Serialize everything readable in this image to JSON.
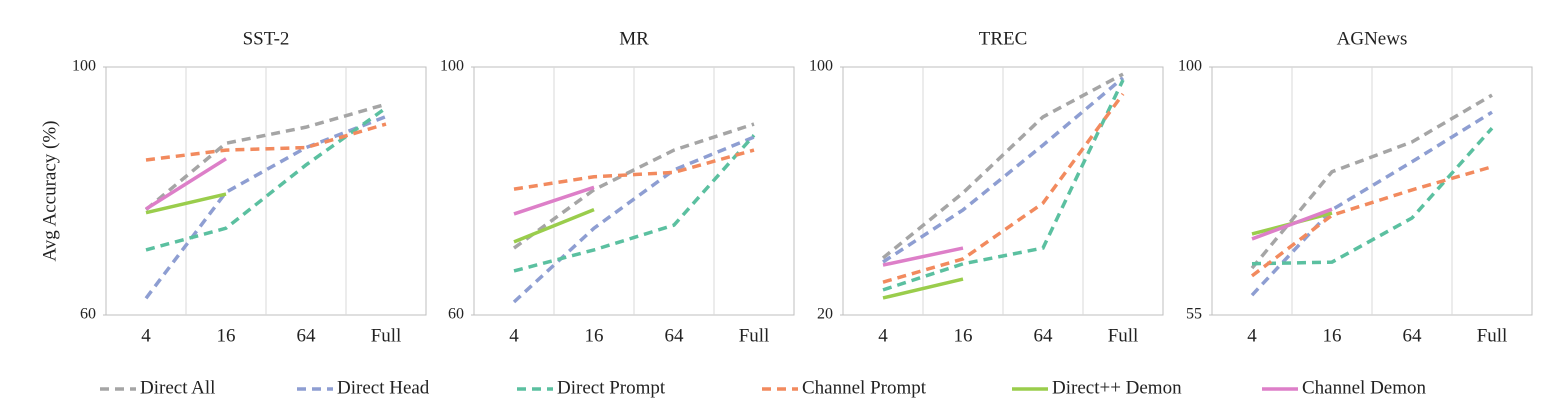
{
  "chart_data": [
    {
      "type": "line",
      "title": "SST-2",
      "ylabel": "Avg Accuracy (%)",
      "categories": [
        "4",
        "16",
        "64",
        "Full"
      ],
      "ylim": [
        60,
        100
      ],
      "yticks": [
        60,
        100
      ],
      "series": [
        {
          "name": "Direct All",
          "color": "#a5a5a5",
          "dashed": true,
          "values": [
            77,
            87.7,
            90.3,
            94
          ]
        },
        {
          "name": "Direct Head",
          "color": "#8e9ed2",
          "dashed": true,
          "values": [
            62.7,
            79.8,
            87,
            92
          ]
        },
        {
          "name": "Direct Prompt",
          "color": "#5bc0a0",
          "dashed": true,
          "values": [
            70.5,
            74,
            84.2,
            93.4
          ]
        },
        {
          "name": "Channel Prompt",
          "color": "#f28a5e",
          "dashed": true,
          "values": [
            85,
            86.6,
            87,
            90.8
          ]
        },
        {
          "name": "Direct++ Demon",
          "color": "#9acd4c",
          "dashed": false,
          "values": [
            76.5,
            79.5,
            null,
            null
          ]
        },
        {
          "name": "Channel Demon",
          "color": "#dd7fc8",
          "dashed": false,
          "values": [
            77.1,
            85.2,
            null,
            null
          ]
        }
      ]
    },
    {
      "type": "line",
      "title": "MR",
      "categories": [
        "4",
        "16",
        "64",
        "Full"
      ],
      "ylim": [
        60,
        100
      ],
      "yticks": [
        60,
        100
      ],
      "series": [
        {
          "name": "Direct All",
          "color": "#a5a5a5",
          "dashed": true,
          "values": [
            70.8,
            80.2,
            86.6,
            90.8
          ]
        },
        {
          "name": "Direct Head",
          "color": "#8e9ed2",
          "dashed": true,
          "values": [
            62.1,
            74,
            83.4,
            88.7
          ]
        },
        {
          "name": "Direct Prompt",
          "color": "#5bc0a0",
          "dashed": true,
          "values": [
            67.1,
            70.5,
            74.5,
            89
          ]
        },
        {
          "name": "Channel Prompt",
          "color": "#f28a5e",
          "dashed": true,
          "values": [
            80.3,
            82.3,
            83,
            86.6
          ]
        },
        {
          "name": "Direct++ Demon",
          "color": "#9acd4c",
          "dashed": false,
          "values": [
            71.8,
            77,
            null,
            null
          ]
        },
        {
          "name": "Channel Demon",
          "color": "#dd7fc8",
          "dashed": false,
          "values": [
            76.3,
            80.6,
            null,
            null
          ]
        }
      ]
    },
    {
      "type": "line",
      "title": "TREC",
      "categories": [
        "4",
        "16",
        "64",
        "Full"
      ],
      "ylim": [
        20,
        100
      ],
      "yticks": [
        20,
        100
      ],
      "series": [
        {
          "name": "Direct All",
          "color": "#a5a5a5",
          "dashed": true,
          "values": [
            38.4,
            59.4,
            83.9,
            97.7
          ]
        },
        {
          "name": "Direct Head",
          "color": "#8e9ed2",
          "dashed": true,
          "values": [
            37.1,
            53.9,
            74.8,
            96.5
          ]
        },
        {
          "name": "Direct Prompt",
          "color": "#5bc0a0",
          "dashed": true,
          "values": [
            28.1,
            36.5,
            41.6,
            95.8
          ]
        },
        {
          "name": "Channel Prompt",
          "color": "#f28a5e",
          "dashed": true,
          "values": [
            30.6,
            38.1,
            56.1,
            91.3
          ]
        },
        {
          "name": "Direct++ Demon",
          "color": "#9acd4c",
          "dashed": false,
          "values": [
            25.5,
            31.6,
            null,
            null
          ]
        },
        {
          "name": "Channel Demon",
          "color": "#dd7fc8",
          "dashed": false,
          "values": [
            36.1,
            41.6,
            null,
            null
          ]
        }
      ]
    },
    {
      "type": "line",
      "title": "AGNews",
      "categories": [
        "4",
        "16",
        "64",
        "Full"
      ],
      "ylim": [
        55,
        100
      ],
      "yticks": [
        55,
        100
      ],
      "series": [
        {
          "name": "Direct All",
          "color": "#a5a5a5",
          "dashed": true,
          "values": [
            63.5,
            81,
            86.4,
            94.9
          ]
        },
        {
          "name": "Direct Head",
          "color": "#8e9ed2",
          "dashed": true,
          "values": [
            58.6,
            74.1,
            82.8,
            91.8
          ]
        },
        {
          "name": "Direct Prompt",
          "color": "#5bc0a0",
          "dashed": true,
          "values": [
            64.3,
            64.6,
            72.6,
            88.9
          ]
        },
        {
          "name": "Channel Prompt",
          "color": "#f28a5e",
          "dashed": true,
          "values": [
            62.1,
            73.1,
            77.7,
            81.9
          ]
        },
        {
          "name": "Direct++ Demon",
          "color": "#9acd4c",
          "dashed": false,
          "values": [
            69.7,
            73.5,
            null,
            null
          ]
        },
        {
          "name": "Channel Demon",
          "color": "#dd7fc8",
          "dashed": false,
          "values": [
            68.8,
            74.2,
            null,
            null
          ]
        }
      ]
    }
  ]
}
